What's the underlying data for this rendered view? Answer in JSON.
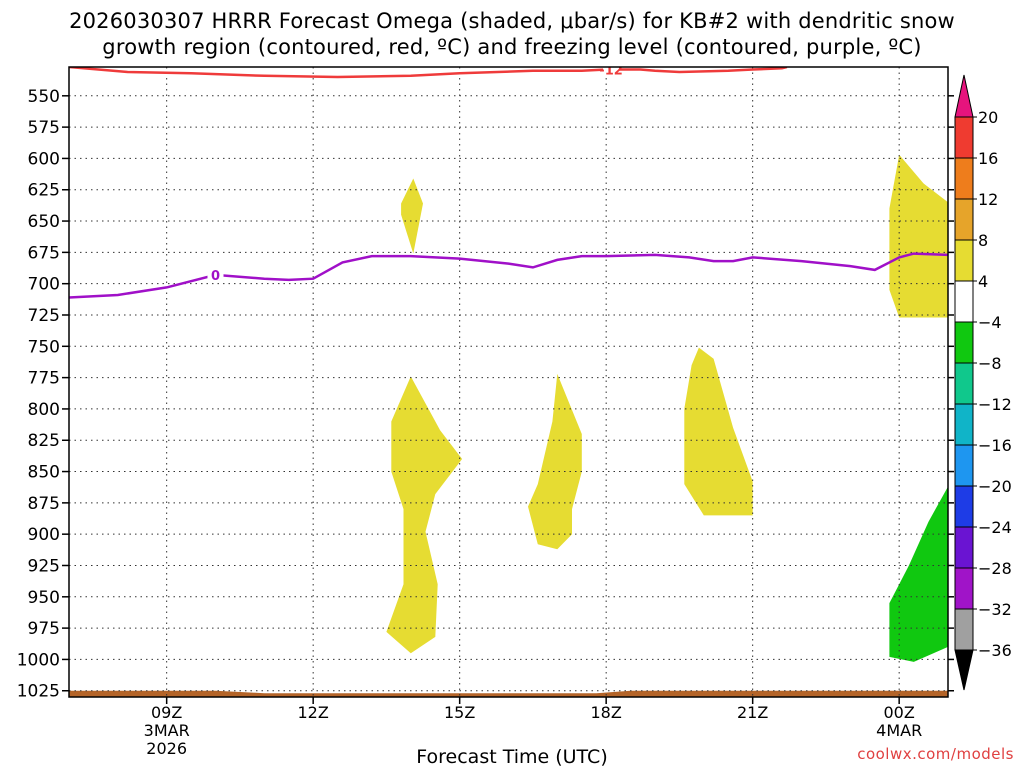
{
  "title": {
    "line1": "2026030307 HRRR Forecast Omega (shaded, μbar/s) for KB#2 with dendritic snow",
    "line2": "growth region (contoured, red, ºC) and freezing level (contoured, purple, ºC)"
  },
  "credit": "coolwx.com/models",
  "chart_data": {
    "type": "time-height cross section",
    "xlabel": "Forecast Time (UTC)",
    "x_range_hours": [
      7,
      25
    ],
    "x_ticks": [
      {
        "hour": 9,
        "label": "09Z",
        "sub1": "3MAR",
        "sub2": "2026"
      },
      {
        "hour": 12,
        "label": "12Z"
      },
      {
        "hour": 15,
        "label": "15Z"
      },
      {
        "hour": 18,
        "label": "18Z"
      },
      {
        "hour": 21,
        "label": "21Z"
      },
      {
        "hour": 24,
        "label": "00Z",
        "sub1": "4MAR"
      }
    ],
    "y_range_hPa": [
      527,
      1030
    ],
    "y_ticks": [
      550,
      575,
      600,
      625,
      650,
      675,
      700,
      725,
      750,
      775,
      800,
      825,
      850,
      875,
      900,
      925,
      950,
      975,
      1000,
      1025
    ],
    "grid": true,
    "colorbar": {
      "levels": [
        20,
        16,
        12,
        8,
        4,
        -4,
        -8,
        -12,
        -16,
        -20,
        -24,
        -28,
        -32,
        -36
      ],
      "labels": [
        "20",
        "16",
        "12",
        "8",
        "4",
        "−4",
        "−8",
        "−12",
        "−16",
        "−20",
        "−24",
        "−28",
        "−32",
        "−36"
      ],
      "colors": [
        "#f0145a",
        "#ef3b30",
        "#ee7d1c",
        "#e6a42a",
        "#e6dc32",
        "#ffffff",
        "#10c810",
        "#10c88c",
        "#10b4c8",
        "#1e96f0",
        "#1e3ce6",
        "#6a14d2",
        "#a014c8",
        "#a0a0a0"
      ],
      "top_color": "#e6147d",
      "bottom_color": "#000000"
    },
    "contours": [
      {
        "name": "dendritic snow growth region",
        "label": "-12",
        "color": "#ef3b3b",
        "points": [
          [
            7.0,
            527
          ],
          [
            8.2,
            531
          ],
          [
            9.5,
            532
          ],
          [
            11.0,
            534
          ],
          [
            12.5,
            535
          ],
          [
            14.0,
            534
          ],
          [
            15.0,
            532
          ],
          [
            16.5,
            530
          ],
          [
            17.5,
            530
          ],
          [
            18.0,
            529
          ],
          [
            18.7,
            529
          ],
          [
            19.0,
            530
          ],
          [
            19.5,
            531
          ],
          [
            20.5,
            530
          ],
          [
            21.0,
            529
          ],
          [
            21.6,
            528
          ],
          [
            21.7,
            527
          ]
        ],
        "label_at": [
          18.1,
          529
        ]
      },
      {
        "name": "freezing level",
        "label": "0",
        "color": "#a010c8",
        "points": [
          [
            7.0,
            711
          ],
          [
            8.0,
            709
          ],
          [
            9.0,
            703
          ],
          [
            10.0,
            693
          ],
          [
            11.0,
            696
          ],
          [
            11.5,
            697
          ],
          [
            12.0,
            696
          ],
          [
            12.6,
            683
          ],
          [
            13.2,
            678
          ],
          [
            14.0,
            678
          ],
          [
            15.0,
            680
          ],
          [
            16.0,
            684
          ],
          [
            16.5,
            687
          ],
          [
            17.0,
            681
          ],
          [
            17.5,
            678
          ],
          [
            18.0,
            678
          ],
          [
            19.0,
            677
          ],
          [
            19.7,
            679
          ],
          [
            20.2,
            682
          ],
          [
            20.6,
            682
          ],
          [
            21.0,
            679
          ],
          [
            22.0,
            682
          ],
          [
            23.0,
            686
          ],
          [
            23.5,
            689
          ],
          [
            24.0,
            679
          ],
          [
            24.3,
            676
          ],
          [
            25.0,
            677
          ]
        ],
        "label_at": [
          10.0,
          693
        ]
      }
    ],
    "shaded_regions": [
      {
        "value": "4 to 8",
        "color": "#e6dc32",
        "points": [
          [
            14.05,
            616
          ],
          [
            14.25,
            636
          ],
          [
            14.05,
            676
          ],
          [
            13.8,
            645
          ],
          [
            13.8,
            636
          ]
        ]
      },
      {
        "value": "4 to 8",
        "color": "#e6dc32",
        "points": [
          [
            14.0,
            774
          ],
          [
            14.6,
            817
          ],
          [
            15.05,
            840
          ],
          [
            14.5,
            868
          ],
          [
            14.3,
            898
          ],
          [
            14.55,
            940
          ],
          [
            14.5,
            982
          ],
          [
            14.0,
            995
          ],
          [
            13.5,
            978
          ],
          [
            13.85,
            940
          ],
          [
            13.85,
            880
          ],
          [
            13.6,
            850
          ],
          [
            13.6,
            810
          ]
        ]
      },
      {
        "value": "4 to 8",
        "color": "#e6dc32",
        "points": [
          [
            17.0,
            772
          ],
          [
            17.5,
            820
          ],
          [
            17.5,
            850
          ],
          [
            17.3,
            880
          ],
          [
            17.3,
            900
          ],
          [
            17.0,
            912
          ],
          [
            16.6,
            908
          ],
          [
            16.4,
            878
          ],
          [
            16.6,
            860
          ],
          [
            16.9,
            810
          ]
        ]
      },
      {
        "value": "4 to 8",
        "color": "#e6dc32",
        "points": [
          [
            19.9,
            751
          ],
          [
            20.2,
            760
          ],
          [
            20.6,
            815
          ],
          [
            21.0,
            858
          ],
          [
            21.0,
            885
          ],
          [
            20.0,
            885
          ],
          [
            19.6,
            860
          ],
          [
            19.6,
            800
          ],
          [
            19.75,
            765
          ]
        ]
      },
      {
        "value": "4 to 8",
        "color": "#e6dc32",
        "points": [
          [
            24.0,
            597
          ],
          [
            24.5,
            620
          ],
          [
            25.0,
            635
          ],
          [
            25.0,
            727
          ],
          [
            24.0,
            727
          ],
          [
            23.8,
            705
          ],
          [
            23.8,
            640
          ]
        ]
      },
      {
        "value": "-8 to -4",
        "color": "#10c810",
        "points": [
          [
            25.0,
            862
          ],
          [
            25.0,
            990
          ],
          [
            24.3,
            1002
          ],
          [
            23.8,
            998
          ],
          [
            23.8,
            955
          ],
          [
            24.2,
            925
          ],
          [
            24.6,
            890
          ]
        ]
      },
      {
        "value": "ground",
        "color": "#b46428",
        "points": [
          [
            7.0,
            1025
          ],
          [
            10.0,
            1025
          ],
          [
            11.0,
            1027
          ],
          [
            17.8,
            1027
          ],
          [
            18.5,
            1025
          ],
          [
            25.0,
            1025
          ],
          [
            25.0,
            1030
          ],
          [
            7.0,
            1030
          ]
        ]
      }
    ]
  }
}
